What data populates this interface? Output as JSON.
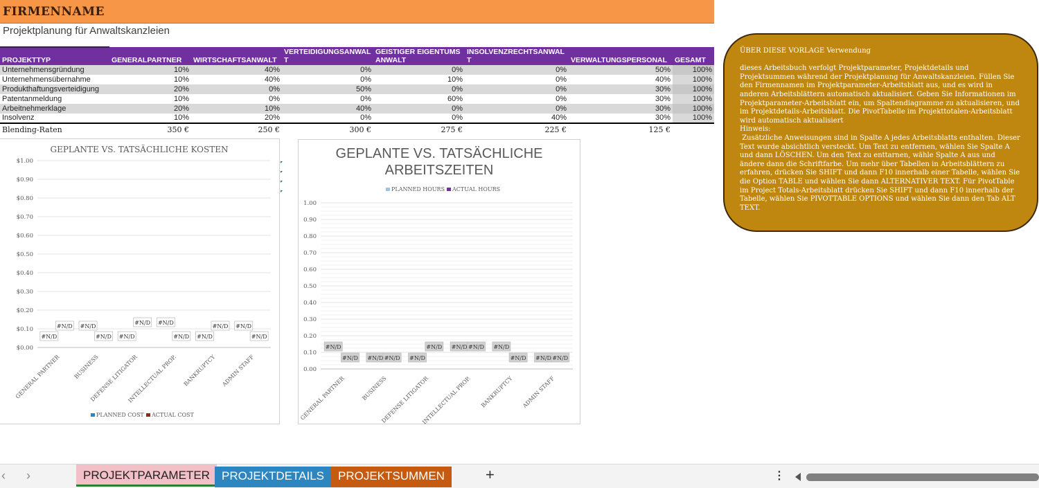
{
  "header": {
    "company": "FIRMENNAME",
    "subtitle": "Projektplanung für Anwaltskanzleien"
  },
  "table": {
    "headers": [
      "PROJEKTTYP",
      "GENERALPARTNER",
      "WIRTSCHAFTSANWALT",
      "VERTEIDIGUNGSANWALT",
      "GEISTIGER EIGENTUMSANWALT",
      "INSOLVENZRECHTSANWALT",
      "VERWALTUNGSPERSONAL",
      "GESAMT"
    ],
    "rows": [
      [
        "Unternehmensgründung",
        "10%",
        "40%",
        "0%",
        "0%",
        "0%",
        "50%",
        "100%"
      ],
      [
        "Unternehmensübernahme",
        "10%",
        "40%",
        "0%",
        "10%",
        "0%",
        "40%",
        "100%"
      ],
      [
        "Produkthaftungsverteidigung",
        "20%",
        "0%",
        "50%",
        "0%",
        "0%",
        "30%",
        "100%"
      ],
      [
        "Patentanmeldung",
        "10%",
        "0%",
        "0%",
        "60%",
        "0%",
        "30%",
        "100%"
      ],
      [
        "Arbeitnehmerklage",
        "20%",
        "10%",
        "40%",
        "0%",
        "0%",
        "30%",
        "100%"
      ],
      [
        "Insolvenz",
        "10%",
        "20%",
        "0%",
        "0%",
        "40%",
        "30%",
        "100%"
      ]
    ],
    "rates": [
      "Blending-Raten",
      "350 €",
      "250 €",
      "300 €",
      "275 €",
      "225 €",
      "125 €",
      ""
    ]
  },
  "chart_data": [
    {
      "type": "bar",
      "title": "GEPLANTE VS. TATSÄCHLICHE KOSTEN",
      "categories": [
        "GENERAL PARTNER",
        "BUSINESS",
        "DEFENSE LITIGATOR",
        "INTELLECTUAL PROP.",
        "BANKRUPTCY",
        "ADMIN STAFF"
      ],
      "series": [
        {
          "name": "PLANNED COST",
          "values": [
            null,
            null,
            null,
            null,
            null,
            null
          ],
          "color": "#2e86c1"
        },
        {
          "name": "ACTUAL COST",
          "values": [
            null,
            null,
            null,
            null,
            null,
            null
          ],
          "color": "#8b2a1a"
        }
      ],
      "data_label": "#N/D",
      "yticks": [
        "$0.00",
        "$0.10",
        "$0.20",
        "$0.30",
        "$0.40",
        "$0.50",
        "$0.60",
        "$0.70",
        "$0.80",
        "$0.90",
        "$1.00"
      ],
      "ylim": [
        0,
        1
      ],
      "legend": "bottom",
      "grid": true
    },
    {
      "type": "bar",
      "title": "GEPLANTE VS. TATSÄCHLICHE ARBEITSZEITEN",
      "categories": [
        "GENERAL PARTNER",
        "BUSINESS",
        "DEFENSE LITIGATOR",
        "INTELLECTUAL PROP.",
        "BANKRUPTCY",
        "ADMIN STAFF"
      ],
      "series": [
        {
          "name": "PLANNED HOURS",
          "values": [
            null,
            null,
            null,
            null,
            null,
            null
          ],
          "color": "#9dc3e6"
        },
        {
          "name": "ACTUAL HOURS",
          "values": [
            null,
            null,
            null,
            null,
            null,
            null
          ],
          "color": "#7030a0"
        }
      ],
      "data_label": "#N/D",
      "yticks": [
        "0.00",
        "0.10",
        "0.20",
        "0.30",
        "0.40",
        "0.50",
        "0.60",
        "0.70",
        "0.80",
        "0.90",
        "1.00"
      ],
      "ylim": [
        0,
        1
      ],
      "legend": "top",
      "grid": true
    }
  ],
  "note": {
    "text": "ÜBER DIESE VORLAGE Verwendung\n\ndieses Arbeitsbuch verfolgt Projektparameter, Projektdetails und Projektsummen während der Projektplanung für Anwaltskanzleien. Füllen Sie den Firmennamen im Projektparameter-Arbeitsblatt aus, und es wird in anderen Arbeitsblättern automatisch aktualisiert. Geben Sie Informationen im Projektparameter-Arbeitsblatt ein, um Spaltendiagramme zu aktualisieren, und im Projektdetails-Arbeitsblatt. Die PivotTabelle im Projekttotalen-Arbeitsblatt wird automatisch aktualisiert\nHinweis:\n Zusätzliche Anweisungen sind in Spalte A jedes Arbeitsblatts enthalten. Dieser Text wurde absichtlich versteckt. Um Text zu entfernen, wählen Sie Spalte A und dann LÖSCHEN. Um den Text zu enttarnen, wähle Spalte A aus und ändere dann die Schriftfarbe. Um mehr über Tabellen in Arbeitsblättern zu erfahren, drücken Sie SHIFT und dann F10 innerhalb einer Tabelle, wählen Sie die Option TABLE und wählen Sie dann ALTERNATIVER TEXT. Für PivotTable im Project Totals-Arbeitsblatt drücken Sie SHIFT und dann F10 innerhalb der Tabelle, wählen Sie PIVOTTABLE OPTIONS und wählen Sie dann den Tab ALT TEXT."
  },
  "tabs": {
    "prev": "‹",
    "next": "›",
    "items": [
      "PROJEKTPARAMETER",
      "PROJEKTDETAILS",
      "PROJEKTSUMMEN"
    ],
    "add": "+",
    "more": "⋮",
    "colors": [
      "#f4c0c8",
      "#2e86c1",
      "#c55a11"
    ]
  }
}
